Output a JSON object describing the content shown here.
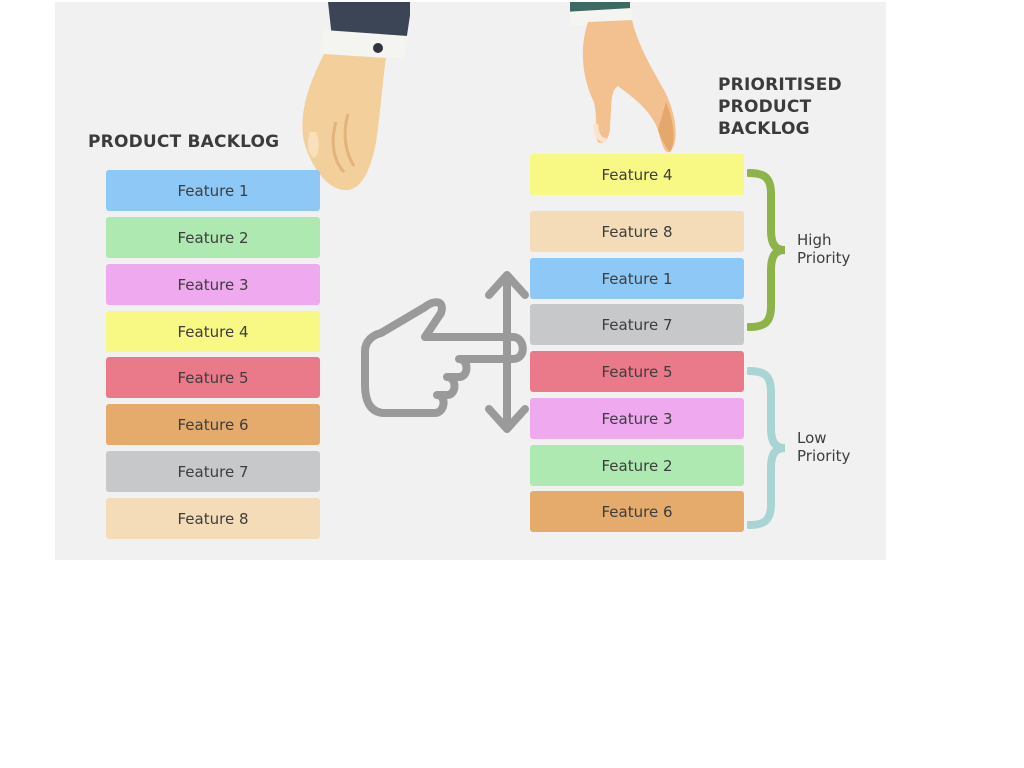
{
  "product_backlog": {
    "title": "PRODUCT BACKLOG",
    "items": [
      {
        "label": "Feature 1",
        "color": "#8ec8f7"
      },
      {
        "label": "Feature 2",
        "color": "#ade9b0"
      },
      {
        "label": "Feature 3",
        "color": "#efa9ef"
      },
      {
        "label": "Feature 4",
        "color": "#f8f885"
      },
      {
        "label": "Feature 5",
        "color": "#ea7a89"
      },
      {
        "label": "Feature 6",
        "color": "#e4ab6c"
      },
      {
        "label": "Feature 7",
        "color": "#c7c8ca"
      },
      {
        "label": "Feature 8",
        "color": "#f4dcb8"
      }
    ]
  },
  "prioritised_backlog": {
    "title": "PRIORITISED\nPRODUCT\nBACKLOG",
    "items": [
      {
        "label": "Feature 4",
        "color": "#f8f885"
      },
      {
        "label": "Feature 8",
        "color": "#f4dcb8"
      },
      {
        "label": "Feature 1",
        "color": "#8ec8f7"
      },
      {
        "label": "Feature 7",
        "color": "#c7c8ca"
      },
      {
        "label": "Feature 5",
        "color": "#ea7a89"
      },
      {
        "label": "Feature 3",
        "color": "#efa9ef"
      },
      {
        "label": "Feature 2",
        "color": "#ade9b0"
      },
      {
        "label": "Feature 6",
        "color": "#e4ab6c"
      }
    ]
  },
  "groups": {
    "high": {
      "label": "High\nPriority",
      "color": "#8db34a"
    },
    "low": {
      "label": "Low\nPriority",
      "color": "#a8d5d3"
    }
  },
  "icons": {
    "left_hand": "hand-icon",
    "right_hand": "hand-icon",
    "pointer": "pointing-hand-icon"
  }
}
